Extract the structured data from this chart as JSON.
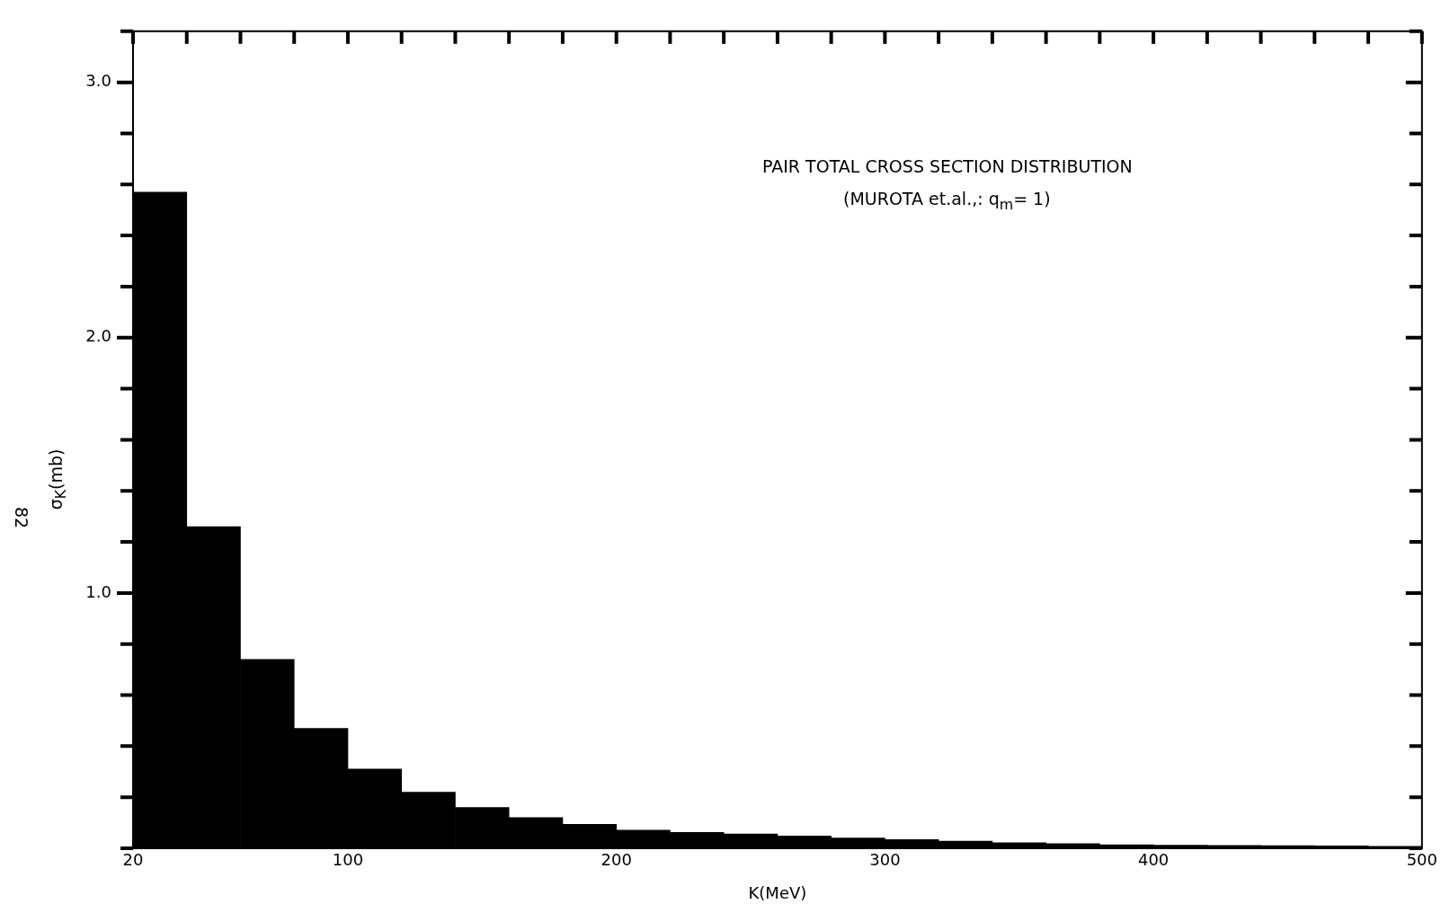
{
  "chart_data": {
    "type": "histogram",
    "title": "PAIR TOTAL CROSS SECTION DISTRIBUTION",
    "subtitle": "(MUROTA et.al.,: q$_{m}$= 1)",
    "xlabel": "K(MeV)",
    "ylabel": "σ$_{K}$(mb)",
    "bins": [
      20,
      40,
      60,
      80,
      100,
      120,
      140,
      160,
      180,
      200,
      220,
      240,
      260,
      280,
      300,
      320,
      340,
      360,
      380,
      400,
      420,
      440,
      460,
      480,
      500
    ],
    "values": [
      2.57,
      1.26,
      0.74,
      0.47,
      0.31,
      0.22,
      0.16,
      0.12,
      0.094,
      0.071,
      0.062,
      0.056,
      0.048,
      0.04,
      0.034,
      0.028,
      0.022,
      0.018,
      0.014,
      0.012,
      0.011,
      0.01,
      0.009,
      0.008
    ],
    "color": "#000000",
    "xlim": [
      20,
      500
    ],
    "xticks": [
      20,
      {
        "value": 40,
        "label": null
      },
      {
        "value": 60,
        "label": null
      },
      {
        "value": 80,
        "label": null
      },
      100,
      {
        "value": 120,
        "label": null
      },
      {
        "value": 140,
        "label": null
      },
      {
        "value": 160,
        "label": null
      },
      {
        "value": 180,
        "label": null
      },
      200,
      {
        "value": 220,
        "label": null
      },
      {
        "value": 240,
        "label": null
      },
      {
        "value": 260,
        "label": null
      },
      {
        "value": 280,
        "label": null
      },
      300,
      {
        "value": 320,
        "label": null
      },
      {
        "value": 340,
        "label": null
      },
      {
        "value": 360,
        "label": null
      },
      {
        "value": 380,
        "label": null
      },
      400,
      {
        "value": 420,
        "label": null
      },
      {
        "value": 440,
        "label": null
      },
      {
        "value": 460,
        "label": null
      },
      {
        "value": 480,
        "label": null
      },
      500
    ],
    "ylim": [
      0,
      3.2
    ],
    "yticks": [
      {
        "value": 1,
        "label": "1.0"
      },
      {
        "value": 2,
        "label": "2.0"
      },
      {
        "value": 3,
        "label": "3.0"
      }
    ],
    "annotations": [
      "82"
    ],
    "grid": false,
    "legend": false
  }
}
